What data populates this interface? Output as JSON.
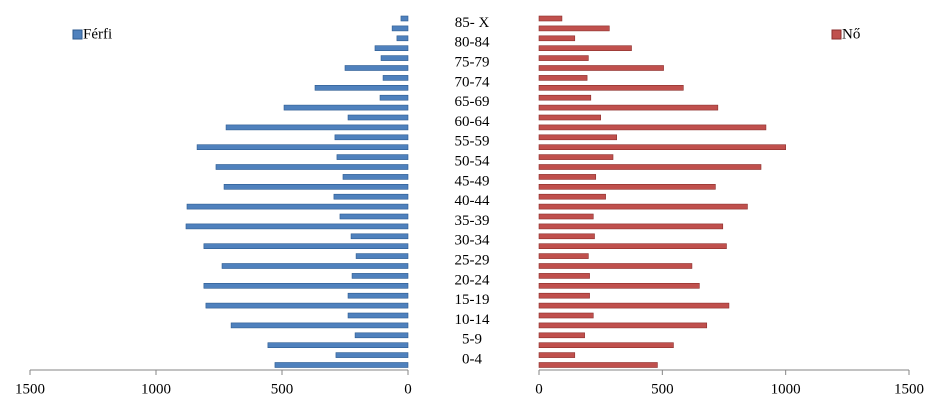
{
  "chart_data": {
    "type": "pyramid",
    "categories": [
      "0-4",
      null,
      "5-9",
      null,
      "10-14",
      null,
      "15-19",
      null,
      "20-24",
      null,
      "25-29",
      null,
      "30-34",
      null,
      "35-39",
      null,
      "40-44",
      null,
      "45-49",
      null,
      "50-54",
      null,
      "55-59",
      null,
      "60-64",
      null,
      "65-69",
      null,
      "70-74",
      null,
      "75-79",
      null,
      "80-84",
      null,
      "85- X",
      null
    ],
    "series": [
      {
        "name": "Férfi",
        "color": "#4f81bd",
        "values": [
          528,
          286,
          556,
          210,
          702,
          238,
          802,
          238,
          810,
          222,
          738,
          206,
          810,
          226,
          881,
          270,
          877,
          294,
          730,
          258,
          762,
          282,
          837,
          290,
          722,
          238,
          492,
          111,
          369,
          99,
          250,
          107,
          131,
          44,
          63,
          28
        ]
      },
      {
        "name": "Nő",
        "color": "#c0504d",
        "values": [
          480,
          145,
          545,
          185,
          680,
          220,
          770,
          205,
          650,
          205,
          620,
          200,
          760,
          225,
          745,
          220,
          845,
          270,
          715,
          230,
          900,
          300,
          1000,
          315,
          920,
          250,
          725,
          210,
          585,
          195,
          505,
          200,
          375,
          145,
          285,
          93
        ]
      }
    ],
    "xlim": [
      0,
      1500
    ],
    "xticks": [
      0,
      500,
      1000,
      1500
    ]
  }
}
